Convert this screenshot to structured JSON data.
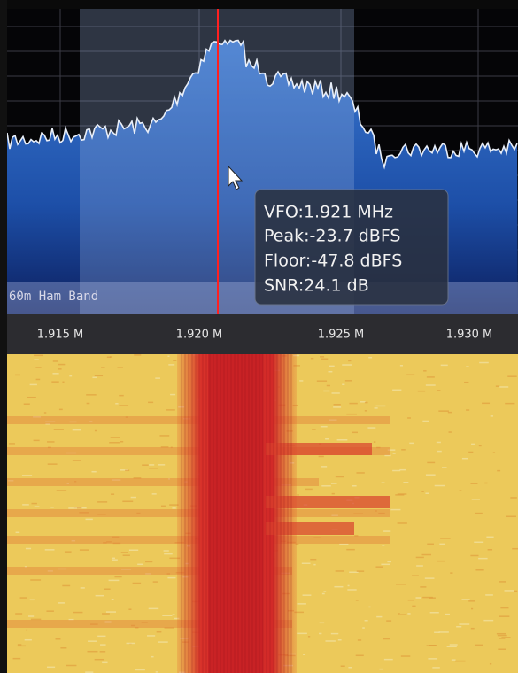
{
  "spectrum": {
    "band_label": "60m Ham Band",
    "freq_labels": [
      "1.915 M",
      "1.920 M",
      "1.925 M",
      "1.930 M"
    ]
  },
  "tooltip": {
    "lines": [
      "VFO:1.921 MHz",
      "Peak:-23.7 dBFS",
      "Floor:-47.8 dBFS",
      "SNR:24.1 dB"
    ]
  }
}
